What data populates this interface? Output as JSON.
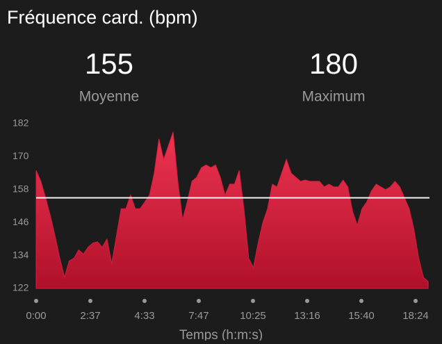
{
  "header": {
    "title": "Fréquence card. (bpm)"
  },
  "stats": [
    {
      "value": 155,
      "label": "Moyenne"
    },
    {
      "value": 180,
      "label": "Maximum"
    }
  ],
  "chart_data": {
    "type": "area",
    "color": "#d81e3c",
    "xlabel": "Temps (h:m:s)",
    "xtick_labels": [
      "0:00",
      "2:37",
      "4:33",
      "7:47",
      "10:25",
      "13:16",
      "15:40",
      "18:24"
    ],
    "ylim": [
      122,
      182
    ],
    "yticks": [
      122,
      134,
      146,
      158,
      170,
      182
    ],
    "values": [
      165,
      161,
      155,
      148.5,
      141,
      133,
      126,
      132,
      133,
      136,
      134.5,
      137,
      138.5,
      139,
      137,
      140,
      131,
      141,
      151,
      151,
      156,
      151,
      151,
      153.5,
      156,
      164,
      176.5,
      169,
      174,
      179,
      161,
      147,
      153.5,
      161,
      162.5,
      166,
      167,
      166,
      167,
      162.5,
      156,
      160,
      160,
      165,
      151,
      133,
      129.5,
      138.5,
      146,
      151,
      160,
      159,
      164,
      169,
      164,
      162.5,
      161,
      161.5,
      161,
      161,
      161,
      159,
      160,
      159,
      159,
      161.5,
      159,
      150,
      145,
      151,
      153.5,
      157.5,
      160,
      159,
      158,
      159,
      161,
      159,
      155,
      151,
      143.5,
      133,
      126,
      124.5
    ]
  }
}
